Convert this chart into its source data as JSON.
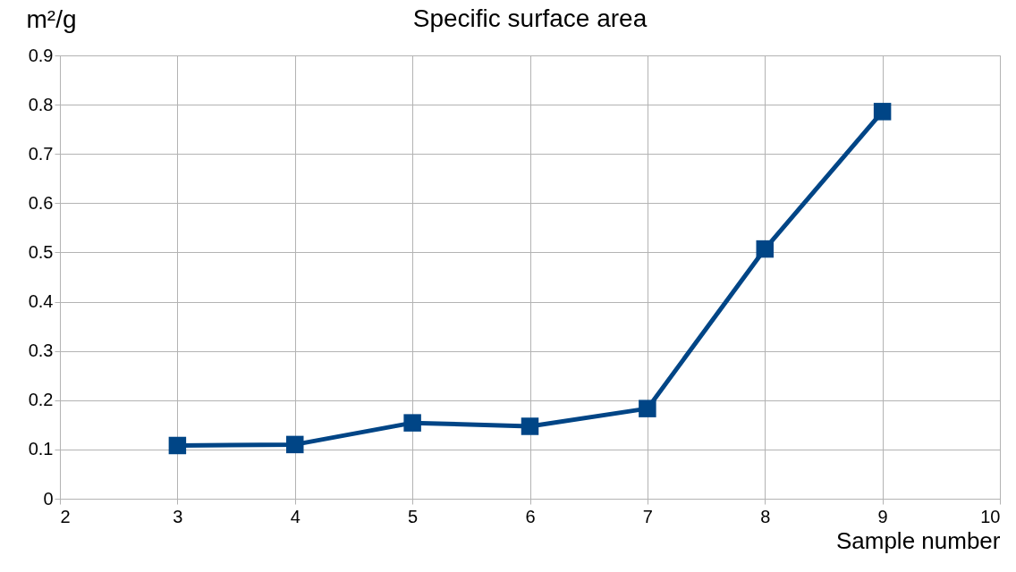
{
  "chart_data": {
    "type": "line",
    "title": "Specific surface area",
    "xlabel": "Sample number",
    "ylabel": "m²/g",
    "x": [
      3,
      4,
      5,
      6,
      7,
      8,
      9
    ],
    "series": [
      {
        "color": "#004586",
        "values": [
          0.108,
          0.11,
          0.154,
          0.147,
          0.183,
          0.507,
          0.786
        ]
      }
    ],
    "xlim": [
      2,
      10
    ],
    "xticks": [
      2,
      3,
      4,
      5,
      6,
      7,
      8,
      9,
      10
    ],
    "ylim": [
      0,
      0.9
    ],
    "yticks": [
      0,
      0.1,
      0.2,
      0.3,
      0.4,
      0.5,
      0.6,
      0.7,
      0.8,
      0.9
    ],
    "grid": true,
    "legend": false,
    "marker": "square",
    "line_style": "solid"
  }
}
